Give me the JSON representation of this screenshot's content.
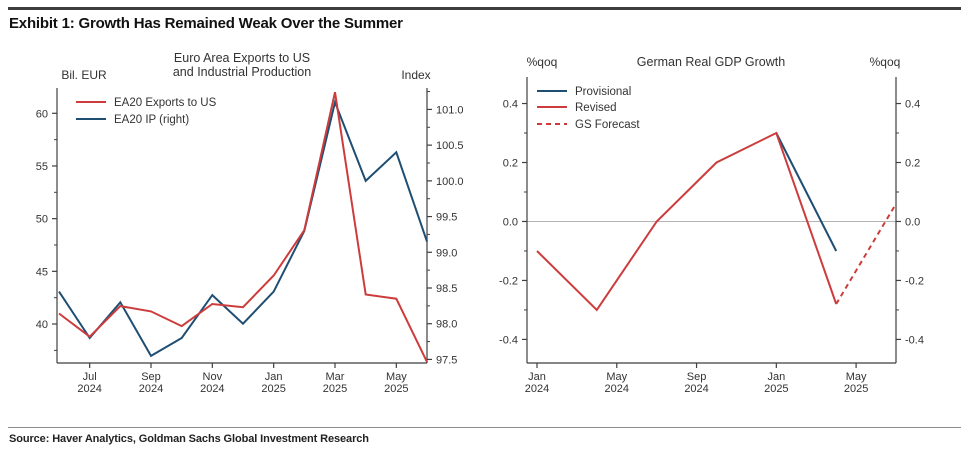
{
  "title": "Exhibit 1: Growth Has Remained Weak Over the Summer",
  "source": "Source: Haver Analytics, Goldman Sachs Global Investment Research",
  "colors": {
    "red": "#cd3c3c",
    "blue": "#1f4e73",
    "axis": "#3f3f3f",
    "text": "#333333",
    "zero_line": "#b3b3b3",
    "rule_dark": "#3d3d3d",
    "rule_light": "#8c8c8c"
  },
  "chart_data": [
    {
      "id": "left",
      "type": "line",
      "title_lines": [
        "Euro Area Exports to US",
        "and Industrial Production"
      ],
      "left_axis": {
        "label": "Bil. EUR",
        "min": 36.3,
        "max": 62.4,
        "minor_step": 2.5,
        "ticks": [
          {
            "v": 40,
            "t": "40"
          },
          {
            "v": 45,
            "t": "45"
          },
          {
            "v": 50,
            "t": "50"
          },
          {
            "v": 55,
            "t": "55"
          },
          {
            "v": 60,
            "t": "60"
          }
        ]
      },
      "right_axis": {
        "label": "Index",
        "min": 97.45,
        "max": 101.3,
        "minor_step": 0.25,
        "ticks": [
          {
            "v": 97.5,
            "t": "97.5"
          },
          {
            "v": 98,
            "t": "98.0"
          },
          {
            "v": 98.5,
            "t": "98.5"
          },
          {
            "v": 99,
            "t": "99.0"
          },
          {
            "v": 99.5,
            "t": "99.5"
          },
          {
            "v": 100,
            "t": "100.0"
          },
          {
            "v": 100.5,
            "t": "100.5"
          },
          {
            "v": 101,
            "t": "101.0"
          }
        ]
      },
      "x": {
        "max": 12,
        "unit": "month (0 = Jun 2024)",
        "categories": [
          "Jun 2024",
          "Jul 2024",
          "Aug 2024",
          "Sep 2024",
          "Oct 2024",
          "Nov 2024",
          "Dec 2024",
          "Jan 2025",
          "Feb 2025",
          "Mar 2025",
          "Apr 2025",
          "May 2025",
          "Jun 2025"
        ],
        "tick_labels": [
          {
            "m": 1,
            "l1": "Jul",
            "l2": "2024"
          },
          {
            "m": 3,
            "l1": "Sep",
            "l2": "2024"
          },
          {
            "m": 5,
            "l1": "Nov",
            "l2": "2024"
          },
          {
            "m": 7,
            "l1": "Jan",
            "l2": "2025"
          },
          {
            "m": 9,
            "l1": "Mar",
            "l2": "2025"
          },
          {
            "m": 11,
            "l1": "May",
            "l2": "2025"
          }
        ]
      },
      "legend": [
        {
          "label": "EA20 Exports to US",
          "color": "#cd3c3c",
          "dash": false
        },
        {
          "label": "EA20 IP (right)",
          "color": "#1f4e73",
          "dash": false
        }
      ],
      "series": [
        {
          "name": "EA20 IP (right)",
          "axis": "right",
          "color": "#1f4e73",
          "dash": false,
          "values": [
            98.45,
            97.8,
            98.3,
            97.55,
            97.8,
            98.4,
            98.0,
            98.45,
            99.3,
            101.1,
            100.0,
            100.4,
            99.15
          ]
        },
        {
          "name": "EA20 Exports to US",
          "axis": "left",
          "color": "#cd3c3c",
          "dash": false,
          "values": [
            41.0,
            38.8,
            41.7,
            41.2,
            39.8,
            41.9,
            41.6,
            44.6,
            48.9,
            62.0,
            42.8,
            42.4,
            36.4
          ]
        }
      ]
    },
    {
      "id": "right",
      "type": "line",
      "title_lines": [
        "German Real GDP Growth"
      ],
      "left_axis": {
        "label": "%qoq",
        "min": -0.48,
        "max": 0.49,
        "minor_step": 0.1,
        "ticks": [
          {
            "v": -0.4,
            "t": "-0.4"
          },
          {
            "v": -0.2,
            "t": "-0.2"
          },
          {
            "v": 0,
            "t": "0.0"
          },
          {
            "v": 0.2,
            "t": "0.2"
          },
          {
            "v": 0.4,
            "t": "0.4"
          }
        ]
      },
      "right_axis": {
        "label": "%qoq",
        "min": -0.48,
        "max": 0.49,
        "minor_step": 0.1,
        "ticks": [
          {
            "v": -0.4,
            "t": "-0.4"
          },
          {
            "v": -0.2,
            "t": "-0.2"
          },
          {
            "v": 0,
            "t": "0.0"
          },
          {
            "v": 0.2,
            "t": "0.2"
          },
          {
            "v": 0.4,
            "t": "0.4"
          }
        ]
      },
      "zero_line": true,
      "x": {
        "max": 18,
        "unit": "month (0 = Jan 2024), quarterly data",
        "categories": [
          "Q1 2024",
          "Q2 2024",
          "Q3 2024",
          "Q4 2024",
          "Q1 2025",
          "Q2 2025",
          "Q3 2025"
        ],
        "tick_labels": [
          {
            "m": 0,
            "l1": "Jan",
            "l2": "2024"
          },
          {
            "m": 4,
            "l1": "May",
            "l2": "2024"
          },
          {
            "m": 8,
            "l1": "Sep",
            "l2": "2024"
          },
          {
            "m": 12,
            "l1": "Jan",
            "l2": "2025"
          },
          {
            "m": 16,
            "l1": "May",
            "l2": "2025"
          }
        ]
      },
      "legend": [
        {
          "label": "Provisional",
          "color": "#1f4e73",
          "dash": false
        },
        {
          "label": "Revised",
          "color": "#cd3c3c",
          "dash": false
        },
        {
          "label": "GS Forecast",
          "color": "#cd3c3c",
          "dash": true
        }
      ],
      "series": [
        {
          "name": "Provisional",
          "axis": "left",
          "color": "#1f4e73",
          "dash": false,
          "points": [
            [
              12,
              0.3
            ],
            [
              15,
              -0.1
            ]
          ]
        },
        {
          "name": "Revised",
          "axis": "left",
          "color": "#cd3c3c",
          "dash": false,
          "points": [
            [
              0,
              -0.1
            ],
            [
              3,
              -0.3
            ],
            [
              6,
              0.0
            ],
            [
              9,
              0.2
            ],
            [
              12,
              0.3
            ],
            [
              15,
              -0.28
            ]
          ]
        },
        {
          "name": "GS Forecast",
          "axis": "left",
          "color": "#cd3c3c",
          "dash": true,
          "points": [
            [
              15,
              -0.28
            ],
            [
              18,
              0.06
            ]
          ]
        }
      ]
    }
  ]
}
